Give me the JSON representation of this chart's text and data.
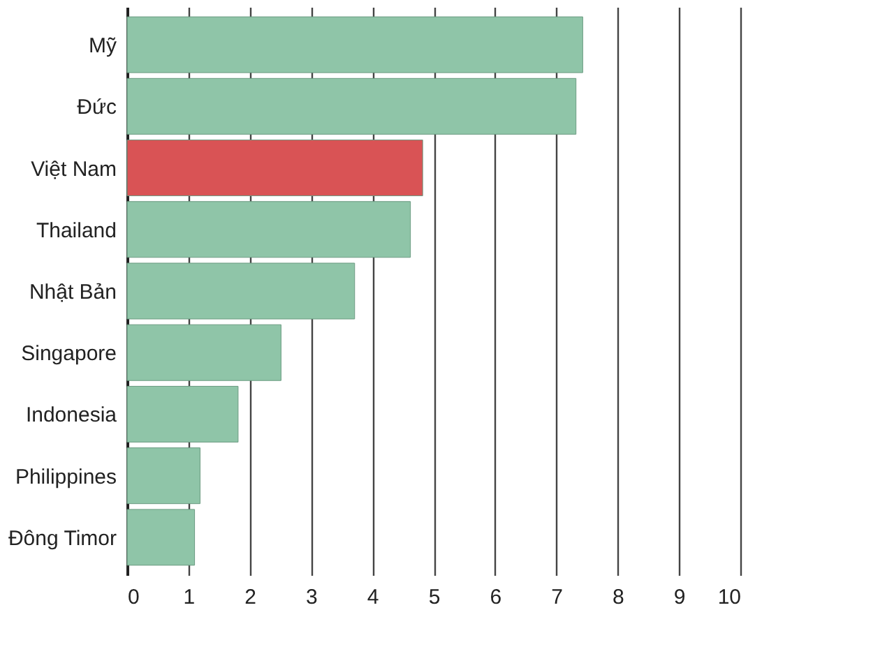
{
  "chart_data": {
    "type": "bar",
    "orientation": "horizontal",
    "categories": [
      "Mỹ",
      "Đức",
      "Việt Nam",
      "Thailand",
      "Nhật Bản",
      "Singapore",
      "Indonesia",
      "Philippines",
      "Đông Timor"
    ],
    "values": [
      7.43,
      7.32,
      4.82,
      4.62,
      3.71,
      2.51,
      1.81,
      1.19,
      1.1
    ],
    "colors": [
      "#8fc5a8",
      "#8fc5a8",
      "#d95355",
      "#8fc5a8",
      "#8fc5a8",
      "#8fc5a8",
      "#8fc5a8",
      "#8fc5a8",
      "#8fc5a8"
    ],
    "xlim": [
      0,
      10
    ],
    "xticks": [
      0,
      1,
      2,
      3,
      4,
      5,
      6,
      7,
      8,
      9,
      10
    ],
    "grid": "x"
  }
}
